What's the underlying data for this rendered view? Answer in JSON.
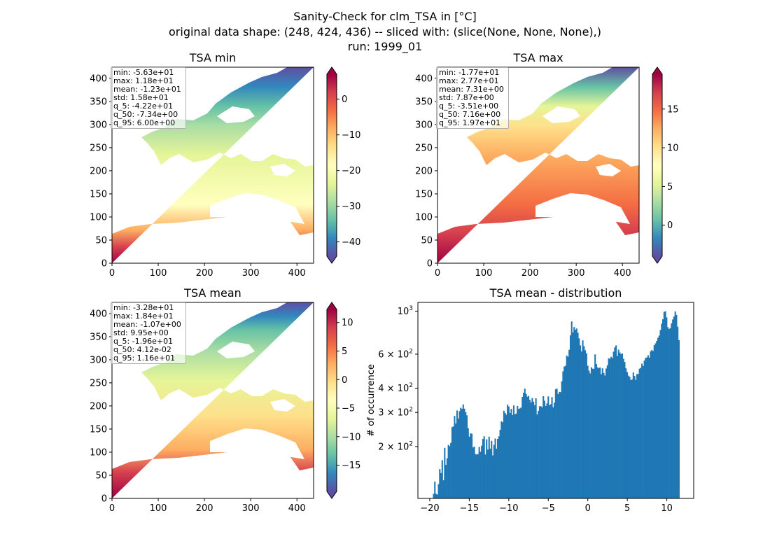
{
  "suptitle": {
    "line1": "Sanity-Check for clm_TSA in [°C]",
    "line2": "original data shape: (248, 424, 436) -- sliced with: (slice(None, None, None),)",
    "line3": "run: 1999_01"
  },
  "chart_data": [
    {
      "type": "heatmap",
      "title": "TSA min",
      "x_ticks": [
        0,
        100,
        200,
        300,
        400
      ],
      "y_ticks": [
        0,
        50,
        100,
        150,
        200,
        250,
        300,
        350,
        400
      ],
      "xlim": [
        0,
        436
      ],
      "ylim": [
        0,
        424
      ],
      "colormap": "Spectral_r",
      "colorbar": {
        "vmin": -44,
        "vmax": 7,
        "ticks": [
          "0",
          "−10",
          "−20",
          "−30",
          "−40"
        ],
        "tick_values": [
          0,
          -10,
          -20,
          -30,
          -40
        ]
      },
      "stats": [
        "min: -5.63e+01",
        "max: 1.18e+01",
        "mean: -1.23e+01",
        "std: 1.58e+01",
        "q_5: -4.22e+01",
        "q_50: -7.34e+00",
        "q_95: 6.00e+00"
      ]
    },
    {
      "type": "heatmap",
      "title": "TSA max",
      "x_ticks": [
        0,
        100,
        200,
        300,
        400
      ],
      "y_ticks": [
        0,
        50,
        100,
        150,
        200,
        250,
        300,
        350,
        400
      ],
      "xlim": [
        0,
        436
      ],
      "ylim": [
        0,
        424
      ],
      "colormap": "Spectral_r",
      "colorbar": {
        "vmin": -4,
        "vmax": 19.5,
        "ticks": [
          "0",
          "5",
          "10",
          "15"
        ],
        "tick_values": [
          0,
          5,
          10,
          15
        ]
      },
      "stats": [
        "min: -1.77e+01",
        "max: 2.77e+01",
        "mean: 7.31e+00",
        "std: 7.87e+00",
        "q_5: -3.51e+00",
        "q_50: 7.16e+00",
        "q_95: 1.97e+01"
      ]
    },
    {
      "type": "heatmap",
      "title": "TSA mean",
      "x_ticks": [
        0,
        100,
        200,
        300,
        400
      ],
      "y_ticks": [
        0,
        50,
        100,
        150,
        200,
        250,
        300,
        350,
        400
      ],
      "xlim": [
        0,
        436
      ],
      "ylim": [
        0,
        424
      ],
      "colormap": "Spectral_r",
      "colorbar": {
        "vmin": -19.6,
        "vmax": 12.3,
        "ticks": [
          "10",
          "5",
          "0",
          "−5",
          "−10",
          "−15"
        ],
        "tick_values": [
          10,
          5,
          0,
          -5,
          -10,
          -15
        ]
      },
      "stats": [
        "min: -3.28e+01",
        "max: 1.84e+01",
        "mean: -1.07e+00",
        "std: 9.95e+00",
        "q_5: -1.96e+01",
        "q_50: 4.12e-02",
        "q_95: 1.16e+01"
      ]
    },
    {
      "type": "bar",
      "title": "TSA mean - distribution",
      "ylabel": "# of occurrence",
      "y_scale": "log",
      "xlim": [
        -21.5,
        13.4
      ],
      "ylim": [
        108,
        1110
      ],
      "x_ticks": [
        -20,
        -15,
        -10,
        -5,
        0,
        5,
        10
      ],
      "x_tick_labels": [
        "−20",
        "−15",
        "−10",
        "−5",
        "0",
        "5",
        "10"
      ],
      "y_ticks": [
        {
          "value": 200,
          "base": "2",
          "exp": "2"
        },
        {
          "value": 300,
          "base": "3",
          "exp": "2"
        },
        {
          "value": 400,
          "base": "4",
          "exp": "2"
        },
        {
          "value": 600,
          "base": "6",
          "exp": "2"
        },
        {
          "value": 1000,
          "base": "10",
          "exp": "3"
        }
      ],
      "color": "#1f77b4",
      "bin_range": [
        -19.6,
        11.6
      ],
      "bins": 200,
      "values": [
        114,
        132,
        114,
        113,
        128,
        153,
        146,
        170,
        134,
        197,
        161,
        174,
        204,
        201,
        209,
        252,
        254,
        288,
        263,
        307,
        279,
        305,
        317,
        313,
        330,
        314,
        301,
        290,
        249,
        225,
        234,
        233,
        198,
        200,
        183,
        182,
        183,
        199,
        188,
        202,
        219,
        226,
        182,
        218,
        193,
        225,
        195,
        214,
        180,
        204,
        220,
        195,
        219,
        226,
        244,
        270,
        267,
        306,
        298,
        292,
        329,
        322,
        298,
        313,
        291,
        326,
        294,
        296,
        324,
        313,
        315,
        318,
        361,
        379,
        398,
        374,
        362,
        365,
        349,
        338,
        356,
        341,
        327,
        355,
        293,
        306,
        323,
        323,
        319,
        364,
        345,
        324,
        334,
        363,
        327,
        331,
        360,
        319,
        337,
        395,
        398,
        373,
        383,
        382,
        434,
        489,
        518,
        522,
        590,
        582,
        632,
        750,
        885,
        777,
        828,
        802,
        814,
        774,
        724,
        666,
        620,
        707,
        660,
        629,
        605,
        523,
        493,
        477,
        513,
        505,
        504,
        598,
        533,
        513,
        507,
        512,
        473,
        507,
        480,
        465,
        506,
        525,
        571,
        568,
        582,
        573,
        618,
        650,
        666,
        588,
        633,
        612,
        601,
        605,
        568,
        547,
        507,
        485,
        465,
        458,
        441,
        444,
        483,
        463,
        442,
        474,
        474,
        505,
        510,
        536,
        521,
        556,
        574,
        577,
        592,
        576,
        620,
        630,
        623,
        667,
        682,
        702,
        729,
        748,
        799,
        862,
        908,
        992,
        999,
        929,
        827,
        809,
        818,
        866,
        906,
        938,
        997,
        957,
        831,
        709
      ]
    }
  ]
}
